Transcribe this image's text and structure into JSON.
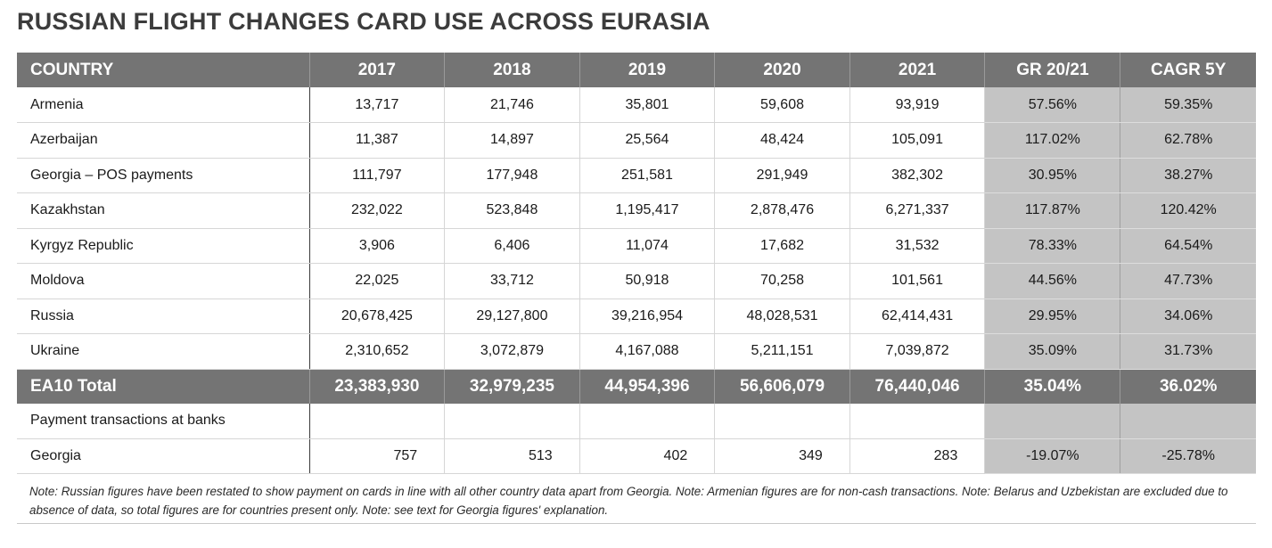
{
  "chart_data": {
    "type": "table",
    "title": "RUSSIAN FLIGHT CHANGES CARD USE ACROSS EURASIA",
    "columns": [
      "COUNTRY",
      "2017",
      "2018",
      "2019",
      "2020",
      "2021",
      "GR 20/21",
      "CAGR 5Y"
    ],
    "rows": [
      [
        "Armenia",
        "13,717",
        "21,746",
        "35,801",
        "59,608",
        "93,919",
        "57.56%",
        "59.35%"
      ],
      [
        "Azerbaijan",
        "11,387",
        "14,897",
        "25,564",
        "48,424",
        "105,091",
        "117.02%",
        "62.78%"
      ],
      [
        "Georgia – POS payments",
        "111,797",
        "177,948",
        "251,581",
        "291,949",
        "382,302",
        "30.95%",
        "38.27%"
      ],
      [
        "Kazakhstan",
        "232,022",
        "523,848",
        "1,195,417",
        "2,878,476",
        "6,271,337",
        "117.87%",
        "120.42%"
      ],
      [
        "Kyrgyz Republic",
        "3,906",
        "6,406",
        "11,074",
        "17,682",
        "31,532",
        "78.33%",
        "64.54%"
      ],
      [
        "Moldova",
        "22,025",
        "33,712",
        "50,918",
        "70,258",
        "101,561",
        "44.56%",
        "47.73%"
      ],
      [
        "Russia",
        "20,678,425",
        "29,127,800",
        "39,216,954",
        "48,028,531",
        "62,414,431",
        "29.95%",
        "34.06%"
      ],
      [
        "Ukraine",
        "2,310,652",
        "3,072,879",
        "4,167,088",
        "5,211,151",
        "7,039,872",
        "35.09%",
        "31.73%"
      ]
    ],
    "total": [
      "EA10 Total",
      "23,383,930",
      "32,979,235",
      "44,954,396",
      "56,606,079",
      "76,440,046",
      "35.04%",
      "36.02%"
    ],
    "subsection": "Payment transactions at banks",
    "subsection_rows": [
      [
        "Georgia",
        "757",
        "513",
        "402",
        "349",
        "283",
        "-19.07%",
        "-25.78%"
      ]
    ],
    "note": "Note: Russian figures have been restated to show payment on cards in line with all other country data apart from Georgia. Note: Armenian figures are for non-cash transactions. Note: Belarus and Uzbekistan are excluded due to absence of data, so total figures are for countries present only. Note: see text for Georgia figures' explanation."
  },
  "colors": {
    "header_bg": "#747474",
    "growth_col_bg": "#c4c4c4",
    "title_text": "#3c3c3c"
  }
}
